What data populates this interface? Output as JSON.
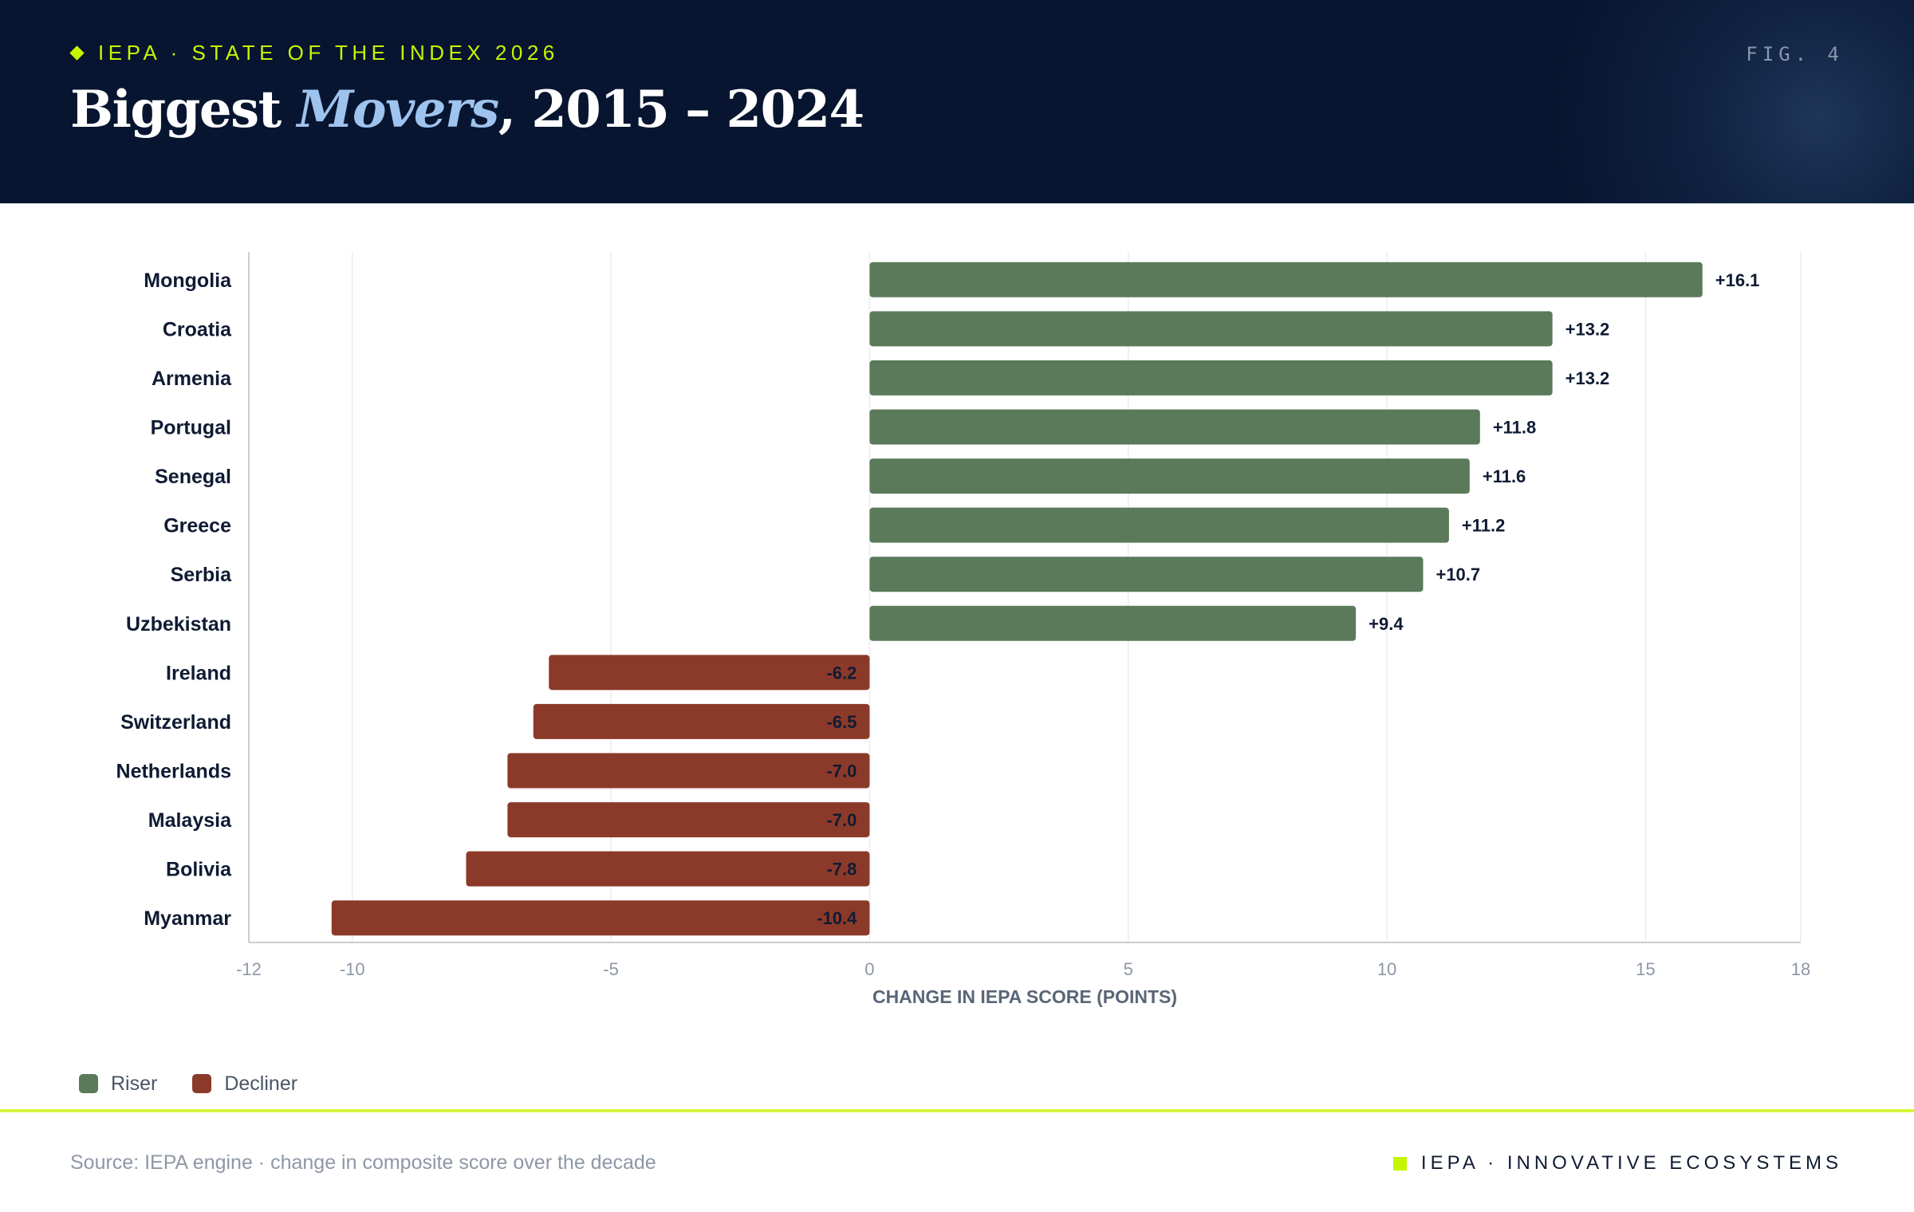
{
  "header": {
    "kicker": "IEPA · STATE OF THE INDEX 2026",
    "fig_label": "FIG. 4",
    "title_part1": "Biggest ",
    "title_emphasis": "Movers",
    "title_part2": ", 2015 – 2024"
  },
  "colors": {
    "riser": "#5a7a5a",
    "decliner": "#8b3a2a",
    "accent": "#c6f500",
    "header_bg": "#081530"
  },
  "chart_data": {
    "type": "bar",
    "orientation": "horizontal",
    "categories": [
      "Mongolia",
      "Croatia",
      "Armenia",
      "Portugal",
      "Senegal",
      "Greece",
      "Serbia",
      "Uzbekistan",
      "Ireland",
      "Switzerland",
      "Netherlands",
      "Malaysia",
      "Bolivia",
      "Myanmar"
    ],
    "values": [
      16.1,
      13.2,
      13.2,
      11.8,
      11.6,
      11.2,
      10.7,
      9.4,
      -6.2,
      -6.5,
      -7.0,
      -7.0,
      -7.8,
      -10.4
    ],
    "value_labels": [
      "+16.1",
      "+13.2",
      "+13.2",
      "+11.8",
      "+11.6",
      "+11.2",
      "+10.7",
      "+9.4",
      "-6.2",
      "-6.5",
      "-7.0",
      "-7.0",
      "-7.8",
      "-10.4"
    ],
    "groups": [
      "Riser",
      "Riser",
      "Riser",
      "Riser",
      "Riser",
      "Riser",
      "Riser",
      "Riser",
      "Decliner",
      "Decliner",
      "Decliner",
      "Decliner",
      "Decliner",
      "Decliner"
    ],
    "xlabel": "CHANGE IN IEPA SCORE (POINTS)",
    "xlim": [
      -12,
      18
    ],
    "xticks": [
      -12,
      -10,
      -5,
      0,
      5,
      10,
      15,
      18
    ],
    "grid": "vertical",
    "legend_position": "bottom-left"
  },
  "legend": {
    "riser_label": "Riser",
    "decliner_label": "Decliner"
  },
  "footer": {
    "source": "Source: IEPA engine · change in composite score over the decade",
    "brand": "IEPA · INNOVATIVE ECOSYSTEMS"
  }
}
